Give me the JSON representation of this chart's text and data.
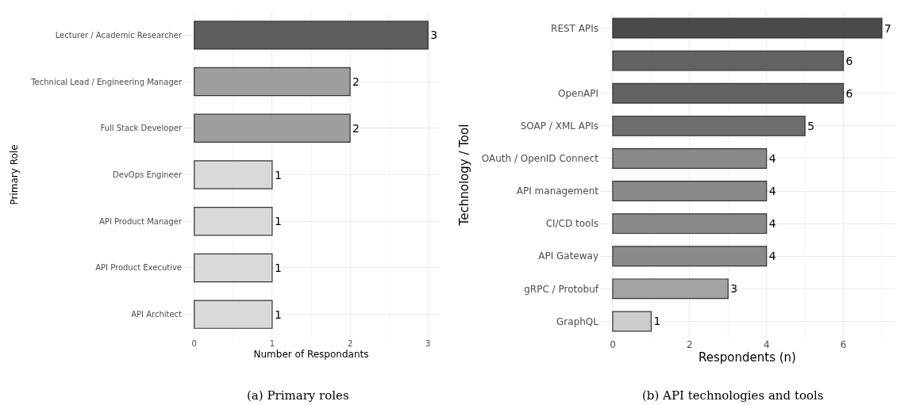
{
  "chart_data": [
    {
      "type": "bar",
      "orientation": "horizontal",
      "ylabel": "Primary Role",
      "xlabel": "Number of Respondants",
      "categories": [
        "Lecturer / Academic Researcher",
        "Technical Lead / Engineering Manager",
        "Full Stack Developer",
        "DevOps Engineer",
        "API Product Manager",
        "API Product Executive",
        "API Architect"
      ],
      "values": [
        3,
        2,
        2,
        1,
        1,
        1,
        1
      ],
      "colors": [
        "#5e5e5e",
        "#9e9e9e",
        "#9e9e9e",
        "#d9d9d9",
        "#d9d9d9",
        "#d9d9d9",
        "#d9d9d9"
      ],
      "xlim": [
        -0.15,
        3.15
      ],
      "xticks": [
        0,
        1,
        2,
        3
      ],
      "grid": true,
      "data_labels": true,
      "annotations": [
        "(a) Primary roles"
      ]
    },
    {
      "type": "bar",
      "orientation": "horizontal",
      "ylabel": "Technology / Tool",
      "xlabel": "Respondents (n)",
      "categories": [
        "REST APIs",
        null,
        "OpenAPI",
        "SOAP / XML APIs",
        "OAuth / OpenID Connect",
        "API management",
        "CI/CD tools",
        "API Gateway",
        "gRPC / Protobuf",
        "GraphQL"
      ],
      "values": [
        7,
        6,
        6,
        5,
        4,
        4,
        4,
        4,
        3,
        1
      ],
      "colors": [
        "#4a4a4a",
        "#626262",
        "#626262",
        "#6e6e6e",
        "#8a8a8a",
        "#8a8a8a",
        "#8a8a8a",
        "#8a8a8a",
        "#a3a3a3",
        "#cccccc"
      ],
      "xlim": [
        -0.35,
        7.35
      ],
      "xticks": [
        0,
        2,
        4,
        6
      ],
      "grid": true,
      "data_labels": true,
      "annotations": [
        "(b) API technologies and tools"
      ]
    }
  ]
}
